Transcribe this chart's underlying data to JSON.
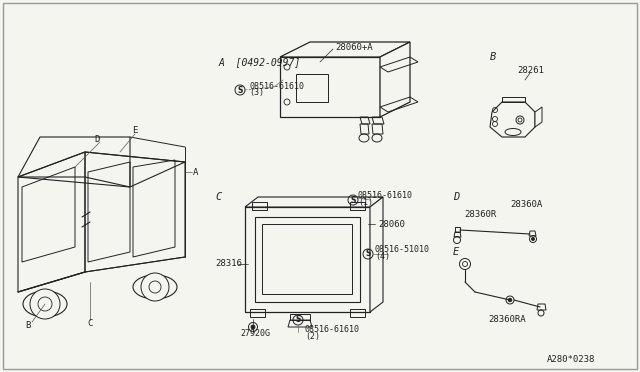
{
  "bg_color": "#f5f5f0",
  "line_color": "#222222",
  "labels": {
    "A_header": "A  [0492-0997]",
    "B_header": "B",
    "C_header": "C",
    "D_header": "D",
    "E_header": "E",
    "part_28060A": "28060+A",
    "part_08516_61610_3": "08516-61610",
    "part_08516_61610_3b": "(3)",
    "part_28261": "28261",
    "part_28316": "28316",
    "part_28060": "28060",
    "part_08516_61610_1": "08516-61610",
    "part_08516_61610_1b": "(1)",
    "part_08516_51010_4": "08516-51010",
    "part_08516_51010_4b": "(4)",
    "part_08516_61610_2": "08516-61610",
    "part_08516_61610_2b": "(2)",
    "part_27920G": "27920G",
    "part_28360A": "28360A",
    "part_28360R": "28360R",
    "part_28360RA": "28360RA",
    "footer": "A280*0238"
  }
}
